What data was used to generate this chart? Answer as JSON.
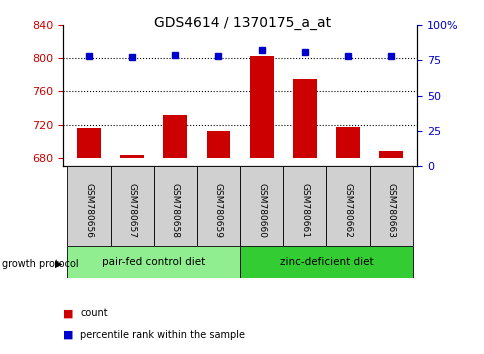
{
  "title": "GDS4614 / 1370175_a_at",
  "samples": [
    "GSM780656",
    "GSM780657",
    "GSM780658",
    "GSM780659",
    "GSM780660",
    "GSM780661",
    "GSM780662",
    "GSM780663"
  ],
  "counts": [
    716,
    684,
    732,
    712,
    802,
    775,
    717,
    688
  ],
  "percentiles": [
    78,
    77,
    79,
    78,
    82,
    81,
    78,
    78
  ],
  "groups": [
    {
      "label": "pair-fed control diet",
      "start": 0,
      "end": 4,
      "color": "#90ee90"
    },
    {
      "label": "zinc-deficient diet",
      "start": 4,
      "end": 8,
      "color": "#33cc33"
    }
  ],
  "ylim_left": [
    670,
    840
  ],
  "ylim_right": [
    0,
    100
  ],
  "yticks_left": [
    680,
    720,
    760,
    800,
    840
  ],
  "yticks_right": [
    0,
    25,
    50,
    75,
    100
  ],
  "bar_color": "#cc0000",
  "dot_color": "#0000cc",
  "bar_bottom": 680,
  "right_axis_color": "#0000cc",
  "left_axis_color": "#cc0000",
  "grid_yticks": [
    800,
    760,
    720
  ],
  "group_label": "growth protocol",
  "sample_box_color": "#d0d0d0",
  "legend_items": [
    {
      "color": "#cc0000",
      "label": "count"
    },
    {
      "color": "#0000cc",
      "label": "percentile rank within the sample"
    }
  ]
}
